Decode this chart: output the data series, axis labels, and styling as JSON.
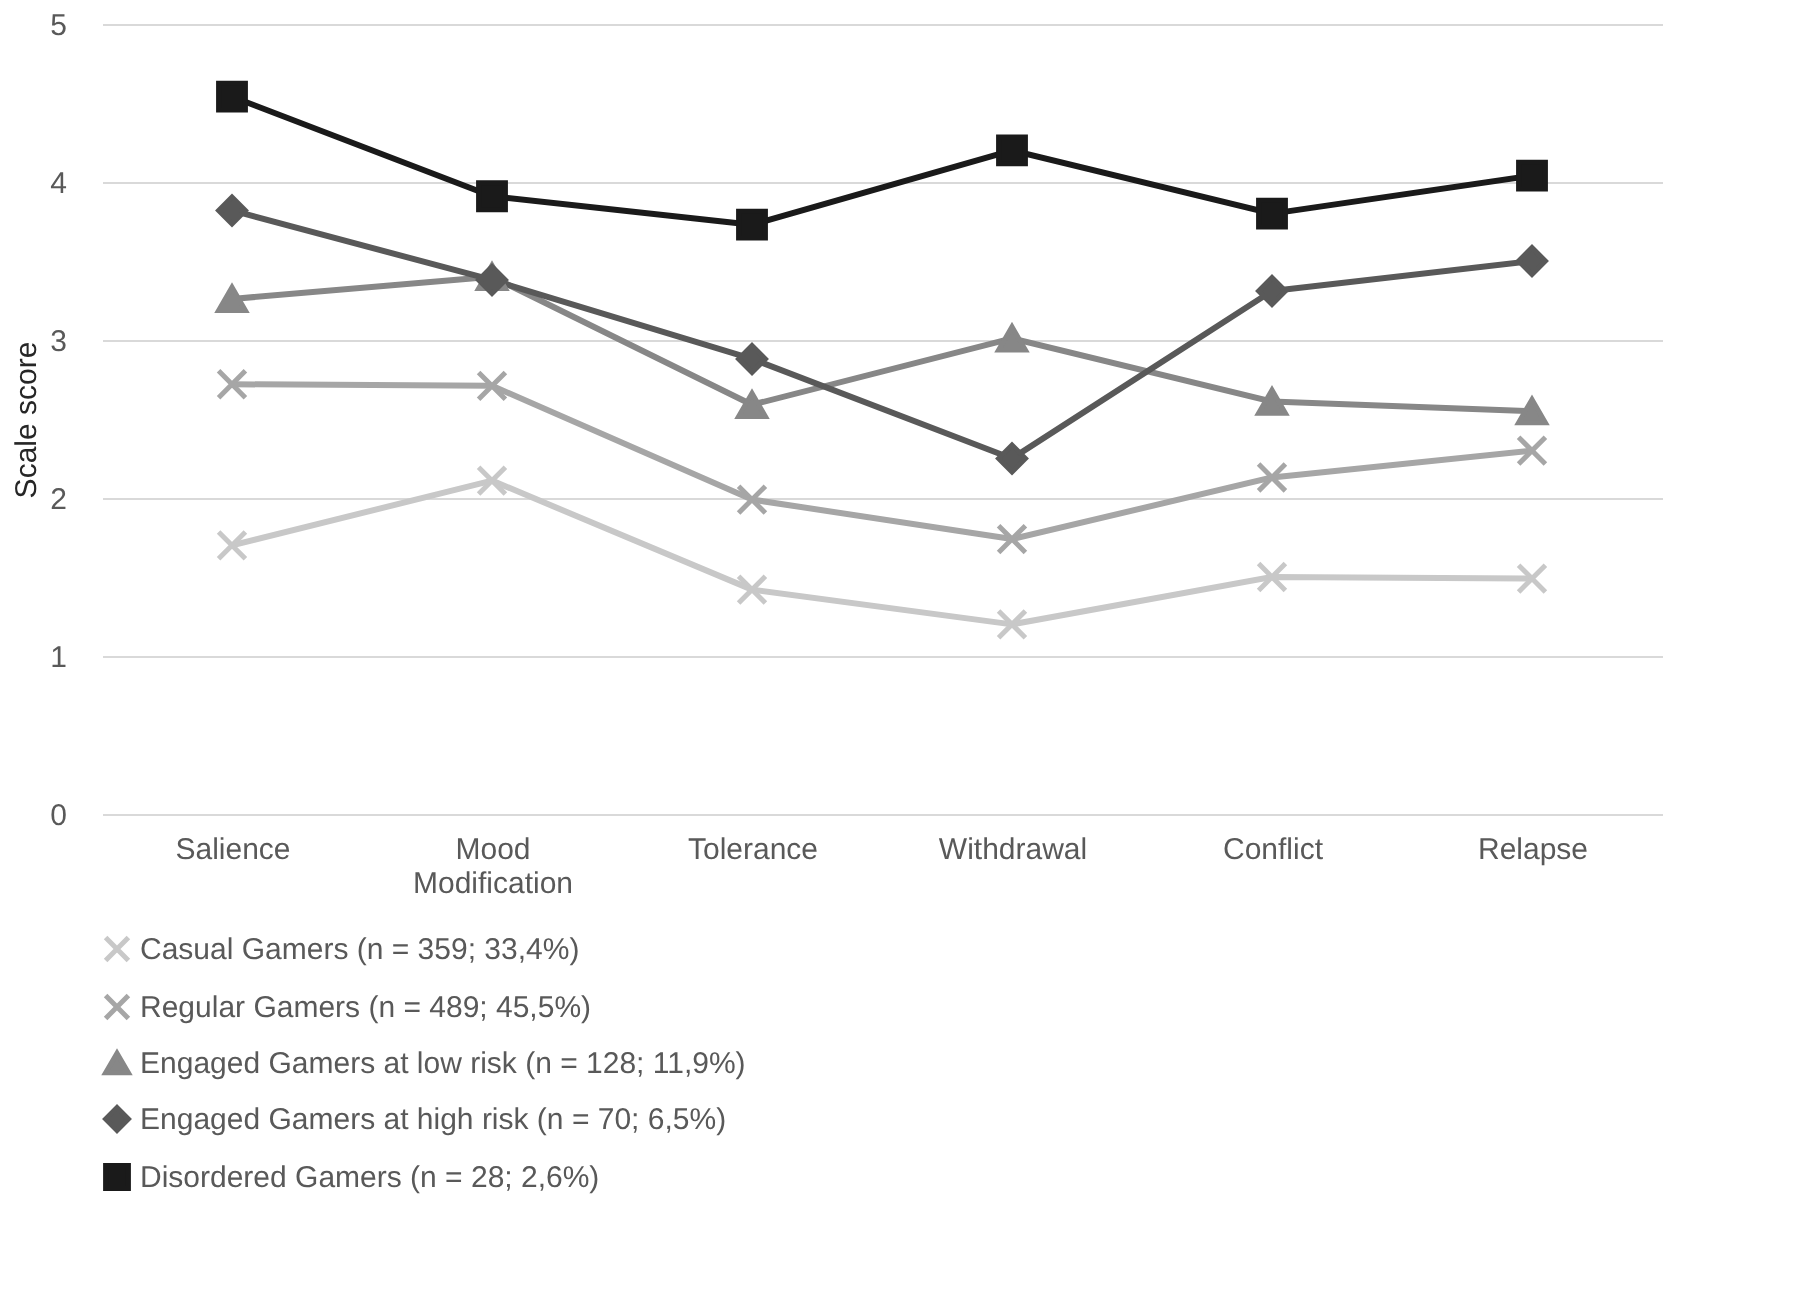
{
  "chart_data": {
    "type": "line",
    "ylabel": "Scale score",
    "categories": [
      "Salience",
      "Mood Modification",
      "Tolerance",
      "Withdrawal",
      "Conflict",
      "Relapse"
    ],
    "ylim": [
      0,
      5
    ],
    "yticks": [
      0,
      1,
      2,
      3,
      4,
      5
    ],
    "grid": "y",
    "legend": "bottom",
    "line_style": "solid",
    "series": [
      {
        "name": "Casual Gamers (n = 359; 33,4%)",
        "color": "#c8c8c8",
        "marker": "cross",
        "values": [
          1.7,
          2.11,
          1.42,
          1.2,
          1.5,
          1.49
        ]
      },
      {
        "name": "Regular Gamers (n = 489; 45,5%)",
        "color": "#a6a6a6",
        "marker": "cross",
        "values": [
          2.72,
          2.71,
          1.99,
          1.74,
          2.13,
          2.3
        ]
      },
      {
        "name": "Engaged Gamers at low risk (n = 128; 11,9%)",
        "color": "#878787",
        "marker": "triangle",
        "values": [
          3.26,
          3.4,
          2.59,
          3.01,
          2.61,
          2.55
        ]
      },
      {
        "name": "Engaged Gamers at high risk (n = 70; 6,5%)",
        "color": "#595959",
        "marker": "diamond",
        "values": [
          3.82,
          3.38,
          2.88,
          2.25,
          3.31,
          3.5
        ]
      },
      {
        "name": "Disordered Gamers (n = 28; 2,6%)",
        "color": "#1a1a1a",
        "marker": "square",
        "values": [
          4.54,
          3.91,
          3.73,
          4.2,
          3.8,
          4.04
        ]
      }
    ]
  }
}
